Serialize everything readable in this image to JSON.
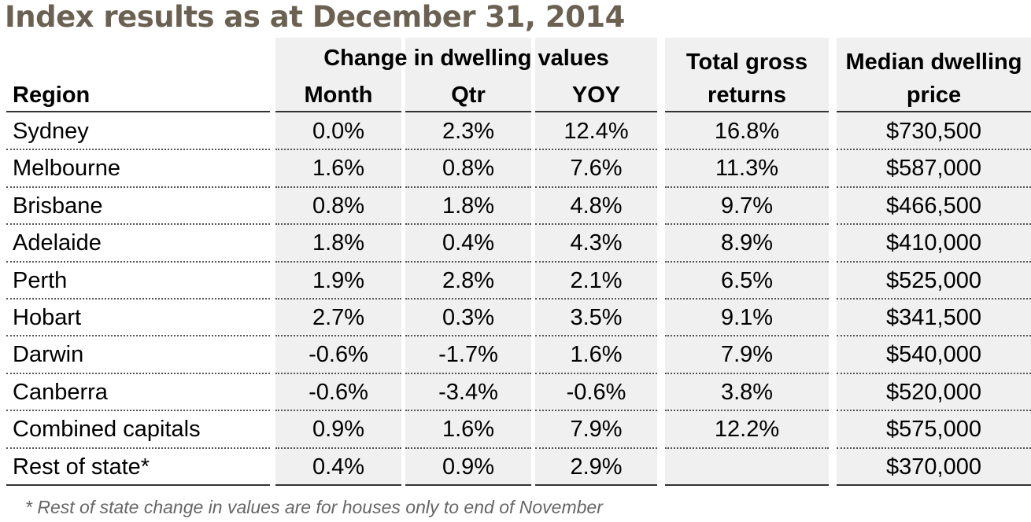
{
  "title": "Index results as at December 31, 2014",
  "header": {
    "region": "Region",
    "group": "Change in dwelling values",
    "month": "Month",
    "qtr": "Qtr",
    "yoy": "YOY",
    "returns_line1": "Total gross",
    "returns_line2": "returns",
    "median_line1": "Median dwelling",
    "median_line2": "price"
  },
  "rows": [
    {
      "region": "Sydney",
      "month": "0.0%",
      "qtr": "2.3%",
      "yoy": "12.4%",
      "returns": "16.8%",
      "median": "$730,500"
    },
    {
      "region": "Melbourne",
      "month": "1.6%",
      "qtr": "0.8%",
      "yoy": "7.6%",
      "returns": "11.3%",
      "median": "$587,000"
    },
    {
      "region": "Brisbane",
      "month": "0.8%",
      "qtr": "1.8%",
      "yoy": "4.8%",
      "returns": "9.7%",
      "median": "$466,500"
    },
    {
      "region": "Adelaide",
      "month": "1.8%",
      "qtr": "0.4%",
      "yoy": "4.3%",
      "returns": "8.9%",
      "median": "$410,000"
    },
    {
      "region": "Perth",
      "month": "1.9%",
      "qtr": "2.8%",
      "yoy": "2.1%",
      "returns": "6.5%",
      "median": "$525,000"
    },
    {
      "region": "Hobart",
      "month": "2.7%",
      "qtr": "0.3%",
      "yoy": "3.5%",
      "returns": "9.1%",
      "median": "$341,500"
    },
    {
      "region": "Darwin",
      "month": "-0.6%",
      "qtr": "-1.7%",
      "yoy": "1.6%",
      "returns": "7.9%",
      "median": "$540,000"
    },
    {
      "region": "Canberra",
      "month": "-0.6%",
      "qtr": "-3.4%",
      "yoy": "-0.6%",
      "returns": "3.8%",
      "median": "$520,000"
    },
    {
      "region": "Combined capitals",
      "month": "0.9%",
      "qtr": "1.6%",
      "yoy": "7.9%",
      "returns": "12.2%",
      "median": "$575,000"
    },
    {
      "region": "Rest of state*",
      "month": "0.4%",
      "qtr": "0.9%",
      "yoy": "2.9%",
      "returns": "",
      "median": "$370,000"
    }
  ],
  "footnote": "* Rest of state change in values are for houses only to end of November",
  "colors": {
    "title": "#6b6153",
    "column_bg": "#f0f0f0",
    "footnote": "#666666"
  }
}
